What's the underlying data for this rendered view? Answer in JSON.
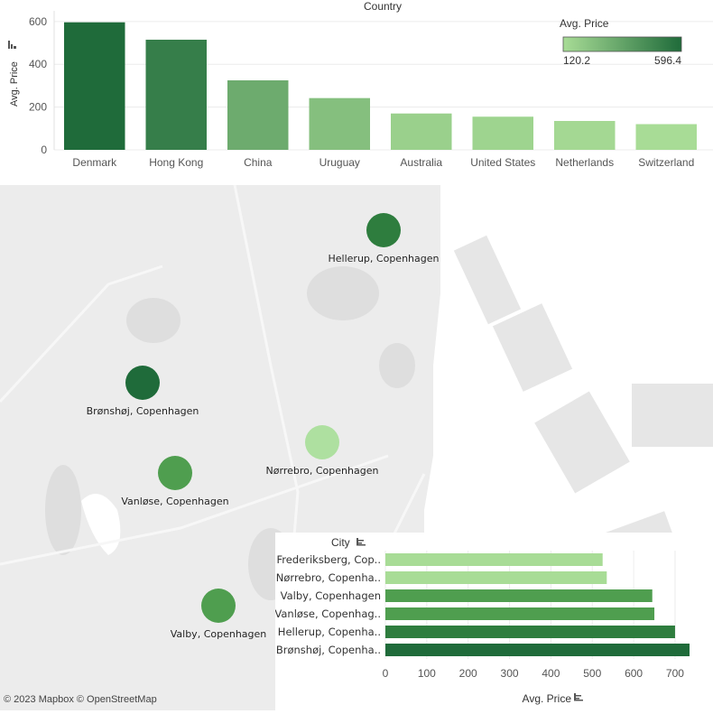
{
  "top_chart": {
    "header": "Country",
    "y_label": "Avg. Price",
    "legend": {
      "title": "Avg. Price",
      "min_label": "120.2",
      "max_label": "596.4",
      "color_low": "#a8dc96",
      "color_high": "#1f6b3a"
    }
  },
  "map": {
    "attribution": "© 2023 Mapbox  © OpenStreetMap",
    "points": [
      {
        "city": "Hellerup, Copenhagen",
        "value": 700
      },
      {
        "city": "Brønshøj, Copenhagen",
        "value": 735
      },
      {
        "city": "Nørrebro, Copenhagen",
        "value": 535
      },
      {
        "city": "Vanløse, Copenhagen",
        "value": 650
      },
      {
        "city": "Valby, Copenhagen",
        "value": 645
      }
    ]
  },
  "bottom_chart": {
    "y_header": "City",
    "x_label": "Avg. Price",
    "rows": [
      {
        "label": "Frederiksberg, Cop..",
        "value": 525
      },
      {
        "label": "Nørrebro, Copenha..",
        "value": 535
      },
      {
        "label": "Valby, Copenhagen",
        "value": 645
      },
      {
        "label": "Vanløse, Copenhag..",
        "value": 650
      },
      {
        "label": "Hellerup, Copenha..",
        "value": 700
      },
      {
        "label": "Brønshøj, Copenha..",
        "value": 735
      }
    ]
  },
  "chart_data": [
    {
      "type": "bar",
      "title": "Country",
      "ylabel": "Avg. Price",
      "xlabel": "",
      "categories": [
        "Denmark",
        "Hong Kong",
        "China",
        "Uruguay",
        "Australia",
        "United States",
        "Netherlands",
        "Switzerland"
      ],
      "values": [
        596.4,
        515,
        325,
        242,
        170,
        155,
        135,
        120.2
      ],
      "ylim": [
        0,
        650
      ],
      "yticks": [
        0,
        200,
        400,
        600
      ],
      "grid": true,
      "legend": "top-right"
    },
    {
      "type": "bar",
      "orientation": "horizontal",
      "title": "City",
      "xlabel": "Avg. Price",
      "categories": [
        "Frederiksberg, Cop..",
        "Nørrebro, Copenha..",
        "Valby, Copenhagen",
        "Vanløse, Copenhag..",
        "Hellerup, Copenha..",
        "Brønshøj, Copenha.."
      ],
      "values": [
        525,
        535,
        645,
        650,
        700,
        735
      ],
      "xlim": [
        0,
        750
      ],
      "xticks": [
        0,
        100,
        200,
        300,
        400,
        500,
        600,
        700
      ],
      "grid": true
    }
  ]
}
